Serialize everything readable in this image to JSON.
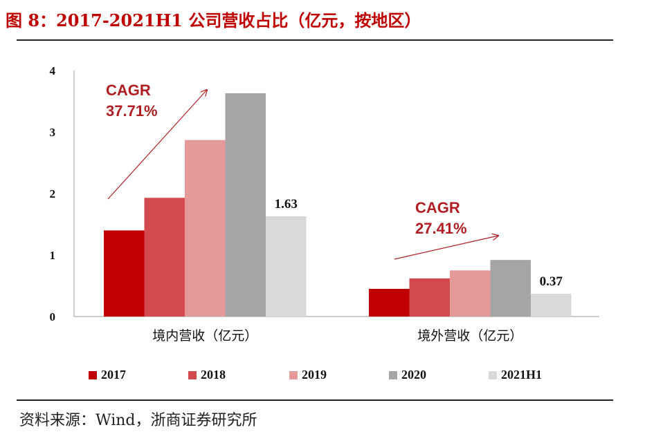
{
  "header": {
    "title": "图 8：2017-2021H1 公司营收占比（亿元，按地区）"
  },
  "footer": {
    "source": "资料来源：Wind，浙商证券研究所"
  },
  "colors": {
    "2017": "#c00000",
    "2018": "#d24a4d",
    "2019": "#e59a9a",
    "2020": "#a5a5a5",
    "2021H1": "#d9d9d9",
    "annotation": "#b01e23"
  },
  "annotations": {
    "domestic_cagr_label": "CAGR",
    "domestic_cagr_value": "37.71%",
    "overseas_cagr_label": "CAGR",
    "overseas_cagr_value": "27.41%"
  },
  "chart_data": {
    "type": "bar",
    "title": "2017-2021H1 公司营收占比（亿元，按地区）",
    "categories": [
      "境内营收（亿元）",
      "境外营收（亿元）"
    ],
    "series": [
      {
        "name": "2017",
        "values": [
          1.4,
          0.45
        ]
      },
      {
        "name": "2018",
        "values": [
          1.93,
          0.62
        ]
      },
      {
        "name": "2019",
        "values": [
          2.87,
          0.75
        ]
      },
      {
        "name": "2020",
        "values": [
          3.63,
          0.92
        ]
      },
      {
        "name": "2021H1",
        "values": [
          1.63,
          0.37
        ]
      }
    ],
    "data_labels": [
      {
        "series": "2021H1",
        "category_index": 0,
        "text": "1.63"
      },
      {
        "series": "2021H1",
        "category_index": 1,
        "text": "0.37"
      }
    ],
    "y_ticks": [
      "0",
      "1",
      "2",
      "3",
      "4"
    ],
    "ylim": [
      0,
      4
    ],
    "xlabel": "",
    "ylabel": "",
    "grid": false,
    "legend_position": "bottom"
  }
}
